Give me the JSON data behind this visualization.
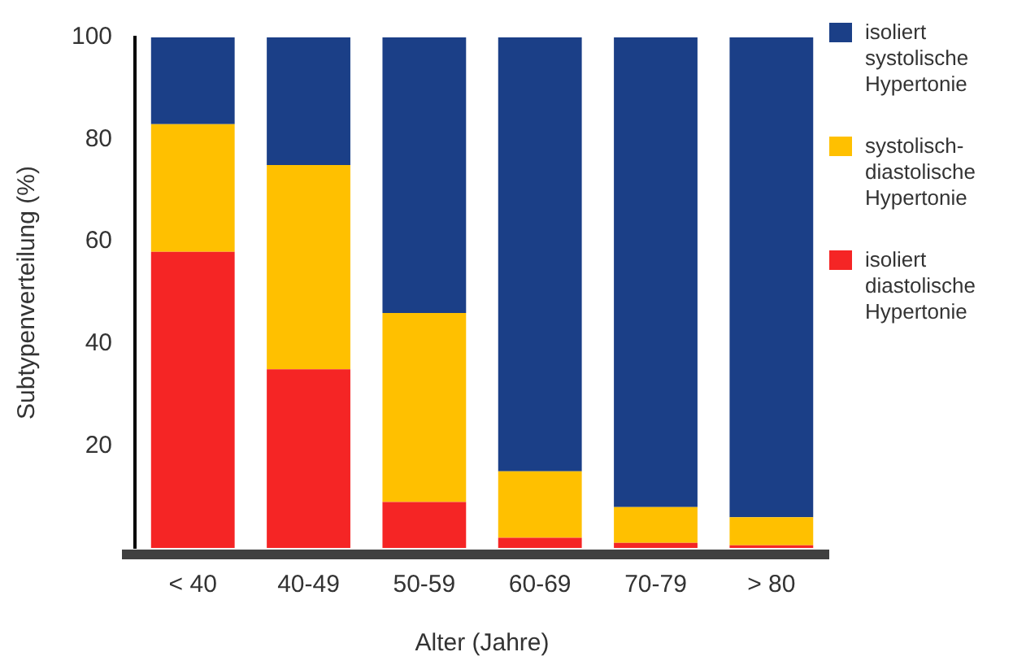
{
  "chart_data": {
    "type": "bar",
    "stacked": true,
    "xlabel": "Alter (Jahre)",
    "ylabel": "Subtypenverteilung (%)",
    "categories": [
      "< 40",
      "40-49",
      "50-59",
      "60-69",
      "70-79",
      "> 80"
    ],
    "series": [
      {
        "name": "isoliert diastolische Hypertonie",
        "color": "#f52525",
        "values": [
          58,
          35,
          9,
          2,
          1,
          0.5
        ]
      },
      {
        "name": "systolisch-diastolische Hypertonie",
        "color": "#ffc000",
        "values": [
          25,
          40,
          37,
          13,
          7,
          5.5
        ]
      },
      {
        "name": "isoliert systolische Hypertonie",
        "color": "#1b3f87",
        "values": [
          17,
          25,
          54,
          85,
          92,
          94
        ]
      }
    ],
    "ylim": [
      0,
      100
    ],
    "yticks": [
      20,
      40,
      60,
      80,
      100
    ],
    "grid": false,
    "legend": "right"
  }
}
